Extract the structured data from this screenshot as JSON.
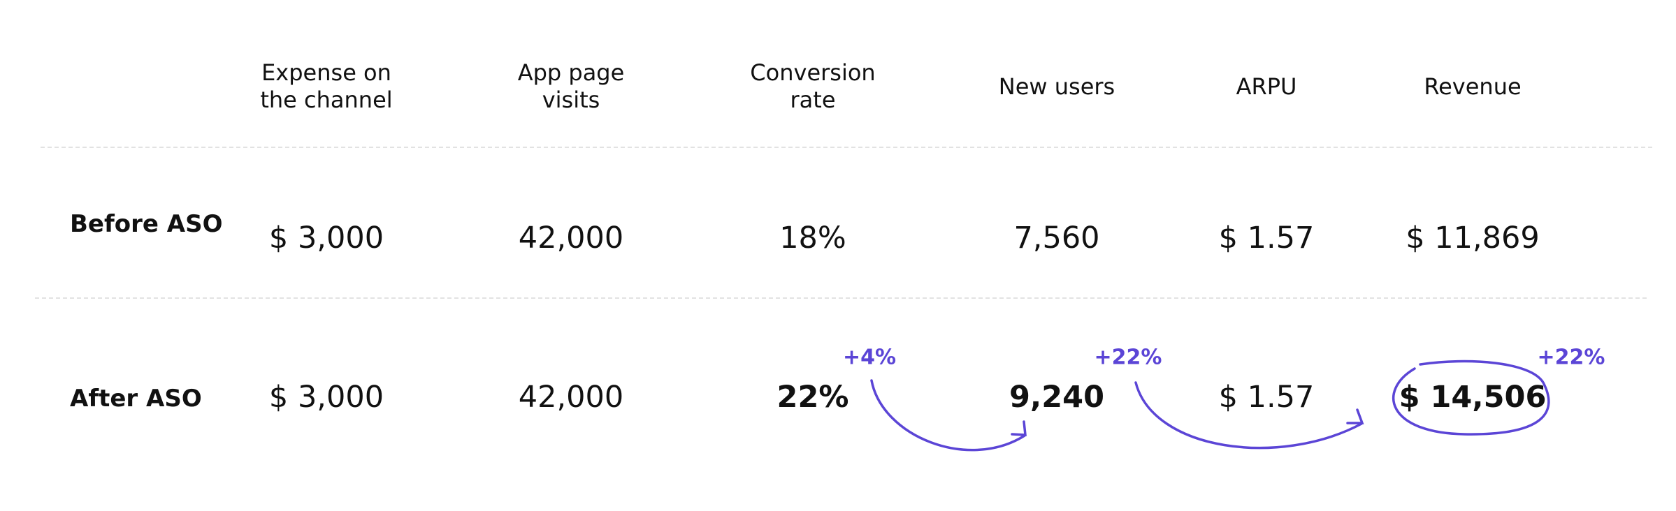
{
  "table": {
    "headers": [
      "Expense on the channel",
      "App page visits",
      "Conversion rate",
      "New users",
      "ARPU",
      "Revenue"
    ],
    "rows": [
      {
        "label": "Before ASO",
        "cells": [
          "$ 3,000",
          "42,000",
          "18%",
          "7,560",
          "$ 1.57",
          "$ 11,869"
        ]
      },
      {
        "label": "After ASO",
        "cells": [
          "$ 3,000",
          "42,000",
          "22%",
          "9,240",
          "$ 1.57",
          "$ 14,506"
        ]
      }
    ]
  },
  "annotations": [
    "+4%",
    "+22%",
    "+22%"
  ]
}
